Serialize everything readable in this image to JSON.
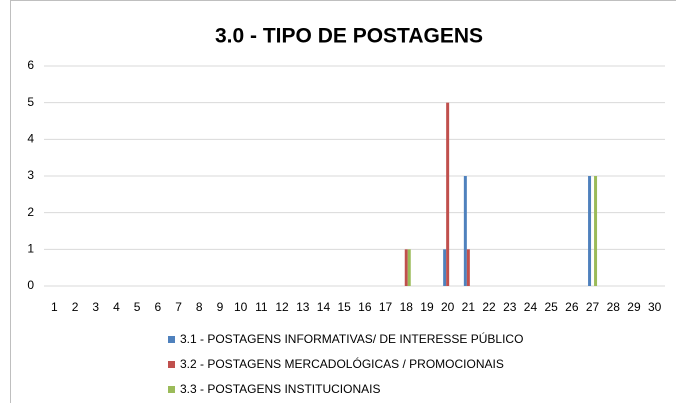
{
  "chart_data": {
    "type": "bar",
    "title": "3.0 - TIPO DE POSTAGENS",
    "categories": [
      "1",
      "2",
      "3",
      "4",
      "5",
      "6",
      "7",
      "8",
      "9",
      "10",
      "11",
      "12",
      "13",
      "14",
      "15",
      "16",
      "17",
      "18",
      "19",
      "20",
      "21",
      "22",
      "23",
      "24",
      "25",
      "26",
      "27",
      "28",
      "29",
      "30"
    ],
    "series": [
      {
        "name": "3.1 - POSTAGENS INFORMATIVAS/ DE INTERESSE PÚBLICO",
        "color": "#4f81bd",
        "values": [
          0,
          0,
          0,
          0,
          0,
          0,
          0,
          0,
          0,
          0,
          0,
          0,
          0,
          0,
          0,
          0,
          0,
          0,
          0,
          1,
          3,
          0,
          0,
          0,
          0,
          0,
          3,
          0,
          0,
          0
        ]
      },
      {
        "name": "3.2 - POSTAGENS MERCADOLÓGICAS / PROMOCIONAIS",
        "color": "#c0504d",
        "values": [
          0,
          0,
          0,
          0,
          0,
          0,
          0,
          0,
          0,
          0,
          0,
          0,
          0,
          0,
          0,
          0,
          0,
          1,
          0,
          5,
          1,
          0,
          0,
          0,
          0,
          0,
          0,
          0,
          0,
          0
        ]
      },
      {
        "name": "3.3 - POSTAGENS INSTITUCIONAIS",
        "color": "#9bbb59",
        "values": [
          0,
          0,
          0,
          0,
          0,
          0,
          0,
          0,
          0,
          0,
          0,
          0,
          0,
          0,
          0,
          0,
          0,
          1,
          0,
          0,
          0,
          0,
          0,
          0,
          0,
          0,
          3,
          0,
          0,
          0
        ]
      }
    ],
    "ylim": [
      0,
      6
    ],
    "yticks": [
      0,
      1,
      2,
      3,
      4,
      5,
      6
    ],
    "grid": true,
    "legend": "bottom"
  }
}
